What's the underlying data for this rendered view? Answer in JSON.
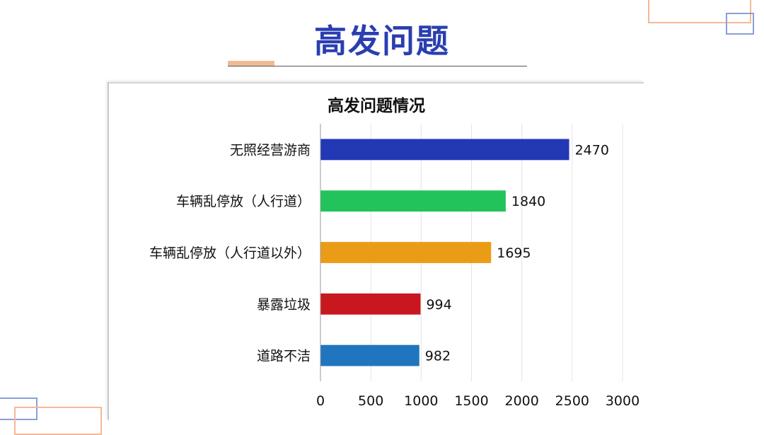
{
  "slide": {
    "title": "高发问题"
  },
  "chart_data": {
    "type": "bar",
    "orientation": "horizontal",
    "title": "高发问题情况",
    "categories": [
      "无照经营游商",
      "车辆乱停放（人行道）",
      "车辆乱停放（人行道以外）",
      "暴露垃圾",
      "道路不洁"
    ],
    "values": [
      2470,
      1840,
      1695,
      994,
      982
    ],
    "colors": [
      "#2338b5",
      "#22c35a",
      "#eb9c16",
      "#c8171f",
      "#1f76be"
    ],
    "xlim": [
      0,
      3000
    ],
    "xticks": [
      0,
      500,
      1000,
      1500,
      2000,
      2500,
      3000
    ],
    "grid": true,
    "data_labels": true
  }
}
